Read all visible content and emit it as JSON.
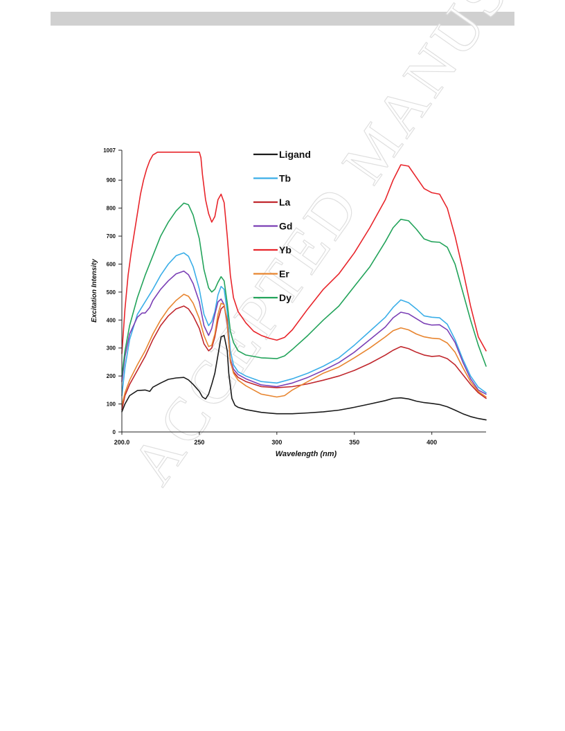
{
  "watermark_text": "ACCEPTED MANUSCRIPT",
  "chart_data": {
    "type": "line",
    "xlabel": "Wavelength (nm)",
    "ylabel": "Excitation Intensity",
    "xlim": [
      200,
      435
    ],
    "ylim": [
      0,
      1007
    ],
    "x_ticks": [
      200,
      250,
      300,
      350,
      400
    ],
    "x_tick_labels": [
      "200.0",
      "250",
      "300",
      "350",
      "400"
    ],
    "y_ticks": [
      0,
      100,
      200,
      300,
      400,
      500,
      600,
      700,
      800,
      900,
      1007
    ],
    "y_tick_labels": [
      "0",
      "100",
      "200",
      "300",
      "400",
      "500",
      "600",
      "700",
      "800",
      "900",
      "1007"
    ],
    "grid": false,
    "legend_position": "top-center",
    "series": [
      {
        "name": "Ligand",
        "color": "#1a1a1a",
        "x": [
          200,
          202,
          205,
          210,
          215,
          218,
          220,
          225,
          230,
          235,
          240,
          243,
          246,
          250,
          252,
          254,
          256,
          258,
          260,
          262,
          264,
          266,
          268,
          269,
          271,
          273,
          275,
          280,
          290,
          300,
          310,
          320,
          330,
          340,
          350,
          360,
          370,
          375,
          380,
          385,
          390,
          395,
          400,
          405,
          410,
          415,
          420,
          425,
          430,
          435
        ],
        "y": [
          72,
          100,
          130,
          148,
          150,
          145,
          160,
          175,
          188,
          193,
          195,
          186,
          170,
          145,
          125,
          118,
          135,
          170,
          210,
          275,
          340,
          345,
          290,
          210,
          120,
          95,
          88,
          80,
          70,
          65,
          65,
          68,
          72,
          78,
          88,
          100,
          112,
          120,
          122,
          118,
          110,
          105,
          102,
          98,
          90,
          78,
          65,
          55,
          48,
          43
        ]
      },
      {
        "name": "Tb",
        "color": "#3aaee8",
        "x": [
          200,
          202,
          205,
          210,
          215,
          220,
          225,
          230,
          235,
          240,
          243,
          246,
          250,
          253,
          256,
          258,
          260,
          262,
          264,
          266,
          268,
          270,
          272,
          275,
          280,
          290,
          300,
          310,
          320,
          330,
          340,
          350,
          360,
          370,
          375,
          380,
          385,
          390,
          395,
          400,
          405,
          410,
          415,
          420,
          425,
          430,
          435
        ],
        "y": [
          130,
          230,
          330,
          420,
          465,
          510,
          560,
          600,
          630,
          640,
          628,
          590,
          510,
          420,
          380,
          395,
          430,
          490,
          520,
          510,
          430,
          290,
          240,
          215,
          200,
          180,
          175,
          190,
          210,
          235,
          265,
          310,
          360,
          410,
          445,
          472,
          462,
          440,
          415,
          410,
          408,
          385,
          330,
          260,
          200,
          160,
          140
        ]
      },
      {
        "name": "La",
        "color": "#c0262c",
        "x": [
          200,
          202,
          205,
          210,
          215,
          220,
          225,
          230,
          235,
          240,
          243,
          246,
          250,
          253,
          256,
          258,
          260,
          262,
          264,
          266,
          268,
          270,
          272,
          275,
          280,
          290,
          300,
          310,
          320,
          330,
          340,
          350,
          360,
          370,
          375,
          380,
          385,
          390,
          395,
          400,
          405,
          410,
          415,
          420,
          425,
          430,
          435
        ],
        "y": [
          80,
          130,
          170,
          220,
          270,
          330,
          380,
          415,
          440,
          450,
          440,
          415,
          370,
          315,
          290,
          300,
          340,
          400,
          440,
          450,
          400,
          250,
          215,
          195,
          180,
          162,
          158,
          162,
          172,
          185,
          200,
          220,
          245,
          275,
          292,
          305,
          298,
          285,
          275,
          270,
          272,
          262,
          240,
          205,
          170,
          140,
          120
        ]
      },
      {
        "name": "Gd",
        "color": "#7a3fb5",
        "x": [
          200,
          202,
          205,
          210,
          213,
          215,
          218,
          220,
          225,
          230,
          235,
          240,
          243,
          246,
          250,
          253,
          256,
          258,
          260,
          262,
          264,
          266,
          268,
          270,
          272,
          275,
          280,
          290,
          300,
          310,
          320,
          330,
          340,
          350,
          360,
          370,
          375,
          380,
          385,
          390,
          395,
          400,
          405,
          410,
          415,
          420,
          425,
          430,
          435
        ],
        "y": [
          180,
          270,
          350,
          410,
          425,
          425,
          445,
          470,
          510,
          540,
          565,
          575,
          562,
          530,
          465,
          380,
          345,
          370,
          420,
          465,
          475,
          455,
          380,
          260,
          225,
          205,
          190,
          168,
          162,
          175,
          195,
          220,
          248,
          285,
          330,
          375,
          408,
          428,
          422,
          405,
          388,
          382,
          383,
          365,
          320,
          250,
          190,
          150,
          135
        ]
      },
      {
        "name": "Yb",
        "color": "#e8242a",
        "x": [
          200,
          202,
          204,
          206,
          208,
          210,
          212,
          214,
          216,
          218,
          220,
          223,
          230,
          240,
          250,
          251,
          252,
          254,
          256,
          258,
          260,
          262,
          264,
          266,
          268,
          270,
          272,
          275,
          280,
          285,
          290,
          295,
          300,
          305,
          310,
          320,
          330,
          340,
          350,
          360,
          370,
          375,
          380,
          385,
          390,
          395,
          400,
          405,
          410,
          415,
          420,
          425,
          430,
          435
        ],
        "y": [
          280,
          440,
          560,
          640,
          710,
          780,
          850,
          900,
          940,
          970,
          990,
          1000,
          1000,
          1000,
          1000,
          980,
          920,
          830,
          780,
          750,
          770,
          830,
          850,
          820,
          700,
          560,
          480,
          430,
          390,
          360,
          345,
          335,
          328,
          338,
          365,
          440,
          510,
          565,
          640,
          730,
          830,
          900,
          955,
          950,
          910,
          870,
          855,
          850,
          800,
          700,
          580,
          450,
          340,
          290
        ]
      },
      {
        "name": "Er",
        "color": "#e8852f",
        "x": [
          200,
          202,
          205,
          210,
          215,
          220,
          225,
          230,
          235,
          240,
          243,
          246,
          250,
          253,
          256,
          258,
          260,
          262,
          264,
          266,
          268,
          270,
          272,
          275,
          280,
          290,
          300,
          305,
          310,
          320,
          330,
          340,
          350,
          360,
          370,
          375,
          380,
          385,
          390,
          395,
          400,
          405,
          410,
          415,
          420,
          425,
          430,
          435
        ],
        "y": [
          95,
          140,
          185,
          240,
          290,
          350,
          400,
          440,
          470,
          492,
          485,
          460,
          405,
          345,
          305,
          310,
          350,
          420,
          460,
          455,
          390,
          255,
          210,
          185,
          165,
          135,
          125,
          130,
          150,
          180,
          210,
          232,
          265,
          300,
          340,
          362,
          372,
          365,
          350,
          340,
          335,
          333,
          318,
          285,
          230,
          180,
          145,
          125
        ]
      },
      {
        "name": "Dy",
        "color": "#22a35a",
        "x": [
          200,
          202,
          205,
          210,
          215,
          220,
          225,
          230,
          235,
          240,
          243,
          246,
          250,
          253,
          256,
          258,
          260,
          262,
          264,
          266,
          268,
          270,
          272,
          275,
          280,
          290,
          300,
          305,
          310,
          320,
          330,
          340,
          350,
          360,
          370,
          375,
          380,
          385,
          390,
          395,
          400,
          405,
          410,
          415,
          420,
          425,
          430,
          435
        ],
        "y": [
          200,
          290,
          380,
          480,
          560,
          630,
          700,
          750,
          790,
          818,
          812,
          775,
          690,
          580,
          515,
          500,
          510,
          535,
          555,
          540,
          460,
          360,
          320,
          290,
          275,
          265,
          262,
          272,
          295,
          345,
          400,
          450,
          520,
          590,
          680,
          730,
          760,
          755,
          725,
          690,
          680,
          678,
          660,
          600,
          500,
          400,
          310,
          235
        ]
      }
    ]
  }
}
